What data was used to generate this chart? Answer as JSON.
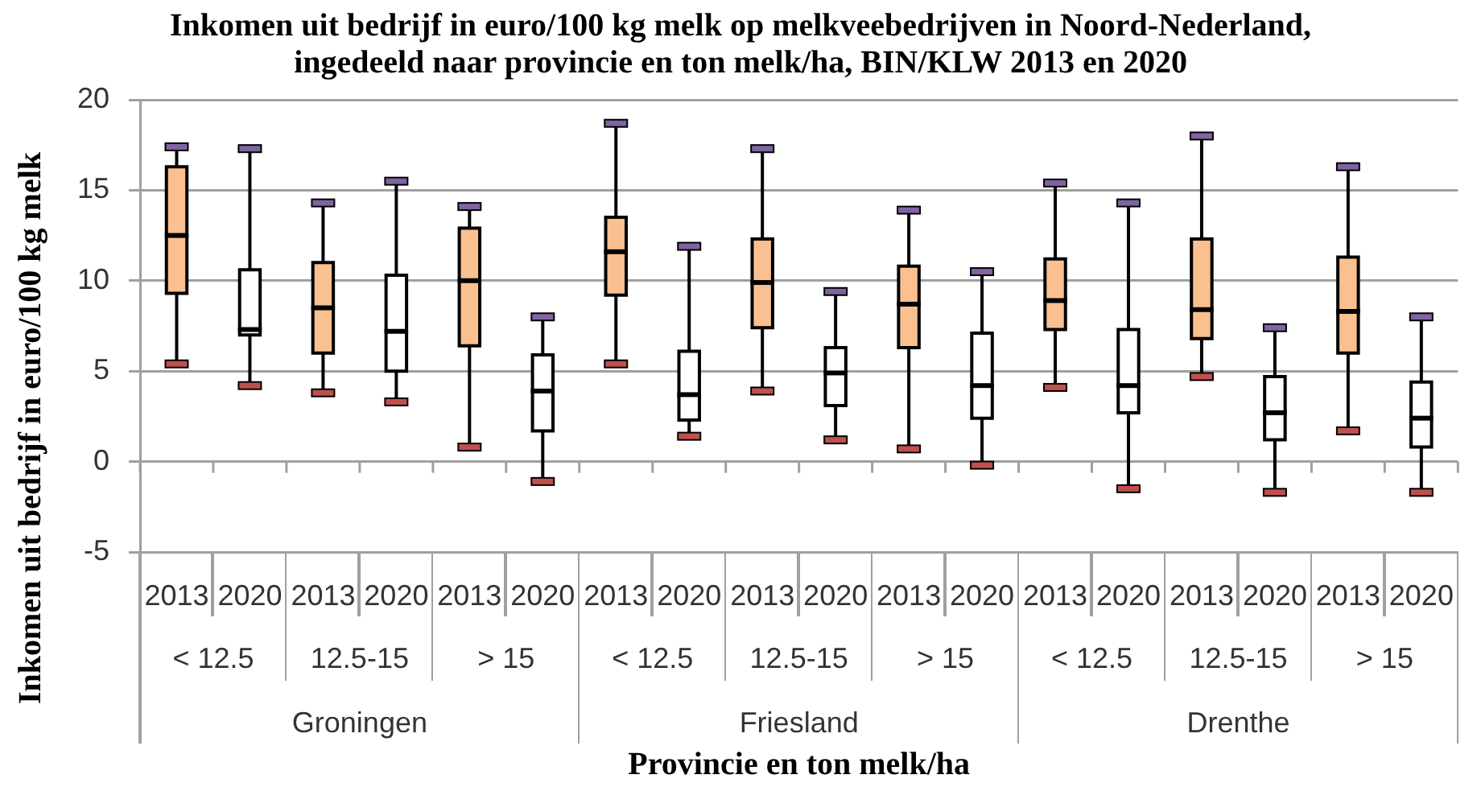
{
  "chart_data": {
    "type": "box",
    "title": "Inkomen uit bedrijf in euro/100 kg melk op melkveebedrijven in Noord-Nederland, ingedeeld naar provincie en ton melk/ha, BIN/KLW 2013 en 2020",
    "xlabel": "Provincie en ton melk/ha",
    "ylabel": "Inkomen uit bedrijf in euro/100 kg melk",
    "categories": [
      "2013",
      "2020",
      "2013",
      "2020",
      "2013",
      "2020",
      "2013",
      "2020",
      "2013",
      "2020",
      "2013",
      "2020",
      "2013",
      "2020",
      "2013",
      "2020",
      "2013",
      "2020"
    ],
    "annotations": [
      "< 12.5",
      "12.5-15",
      "> 15",
      "< 12.5",
      "12.5-15",
      "> 15",
      "< 12.5",
      "12.5-15",
      "> 15",
      "Groningen",
      "Friesland",
      "Drenthe"
    ],
    "boxes": [
      {
        "low": 5.4,
        "q1": 9.3,
        "median": 12.5,
        "q3": 16.3,
        "high": 17.4
      },
      {
        "low": 4.2,
        "q1": 7.0,
        "median": 7.3,
        "q3": 10.6,
        "high": 17.3
      },
      {
        "low": 3.8,
        "q1": 6.0,
        "median": 8.5,
        "q3": 11.0,
        "high": 14.3
      },
      {
        "low": 3.3,
        "q1": 5.0,
        "median": 7.2,
        "q3": 10.3,
        "high": 15.5
      },
      {
        "low": 0.8,
        "q1": 6.4,
        "median": 10.0,
        "q3": 12.9,
        "high": 14.1
      },
      {
        "low": -1.1,
        "q1": 1.7,
        "median": 3.9,
        "q3": 5.9,
        "high": 8.0
      },
      {
        "low": 5.4,
        "q1": 9.2,
        "median": 11.6,
        "q3": 13.5,
        "high": 18.7
      },
      {
        "low": 1.4,
        "q1": 2.3,
        "median": 3.7,
        "q3": 6.1,
        "high": 11.9
      },
      {
        "low": 3.9,
        "q1": 7.4,
        "median": 9.9,
        "q3": 12.3,
        "high": 17.3
      },
      {
        "low": 1.2,
        "q1": 3.1,
        "median": 4.9,
        "q3": 6.3,
        "high": 9.4
      },
      {
        "low": 0.7,
        "q1": 6.3,
        "median": 8.7,
        "q3": 10.8,
        "high": 13.9
      },
      {
        "low": -0.2,
        "q1": 2.4,
        "median": 4.2,
        "q3": 7.1,
        "high": 10.5
      },
      {
        "low": 4.1,
        "q1": 7.3,
        "median": 8.9,
        "q3": 11.2,
        "high": 15.4
      },
      {
        "low": -1.5,
        "q1": 2.7,
        "median": 4.2,
        "q3": 7.3,
        "high": 14.3
      },
      {
        "low": 4.7,
        "q1": 6.8,
        "median": 8.4,
        "q3": 12.3,
        "high": 18.0
      },
      {
        "low": -1.7,
        "q1": 1.2,
        "median": 2.7,
        "q3": 4.7,
        "high": 7.4
      },
      {
        "low": 1.7,
        "q1": 6.0,
        "median": 8.3,
        "q3": 11.3,
        "high": 16.3
      },
      {
        "low": -1.7,
        "q1": 0.8,
        "median": 2.4,
        "q3": 4.4,
        "high": 8.0
      }
    ],
    "colors": [
      "#fac090",
      "#ffffff",
      "#fac090",
      "#ffffff",
      "#fac090",
      "#ffffff",
      "#fac090",
      "#ffffff",
      "#fac090",
      "#ffffff",
      "#fac090",
      "#ffffff",
      "#fac090",
      "#ffffff",
      "#fac090",
      "#ffffff",
      "#fac090",
      "#ffffff"
    ],
    "ylim": [
      -5,
      20
    ],
    "yticks": [
      -5,
      0,
      5,
      10,
      15,
      20
    ],
    "grid": "y"
  }
}
